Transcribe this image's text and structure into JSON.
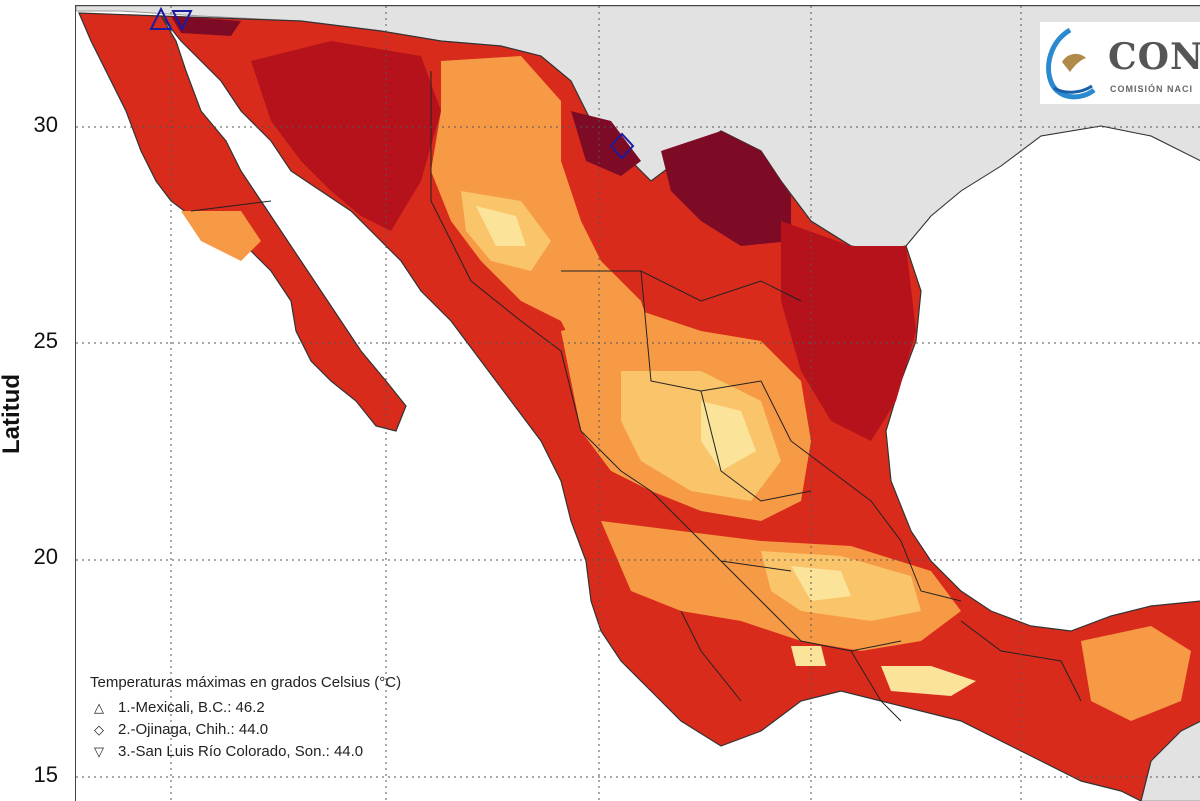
{
  "map": {
    "y_axis_title": "Latitud",
    "y_ticks": [
      "30",
      "25",
      "20",
      "15"
    ],
    "land_color": "#e2e2e2",
    "sea_color": "#ffffff",
    "temperature_colors": [
      "#fbe39a",
      "#f9c46a",
      "#f79a45",
      "#ee5a2a",
      "#d92b1c",
      "#b5121c",
      "#7d0b25"
    ],
    "markers": [
      {
        "symbol": "triangle-up",
        "label": "Mexicali"
      },
      {
        "symbol": "diamond",
        "label": "Ojinaga"
      },
      {
        "symbol": "triangle-down",
        "label": "San Luis Río Colorado"
      }
    ]
  },
  "logo": {
    "text": "CON",
    "subtitle": "COMISIÓN NACI"
  },
  "legend": {
    "title": "Temperaturas máximas en grados Celsius (°C)",
    "items": [
      {
        "symbol": "△",
        "text": "1.-Mexicali, B.C.: 46.2"
      },
      {
        "symbol": "◇",
        "text": "2.-Ojinaga, Chih.: 44.0"
      },
      {
        "symbol": "▽",
        "text": "3.-San Luis Río Colorado, Son.: 44.0"
      }
    ]
  }
}
